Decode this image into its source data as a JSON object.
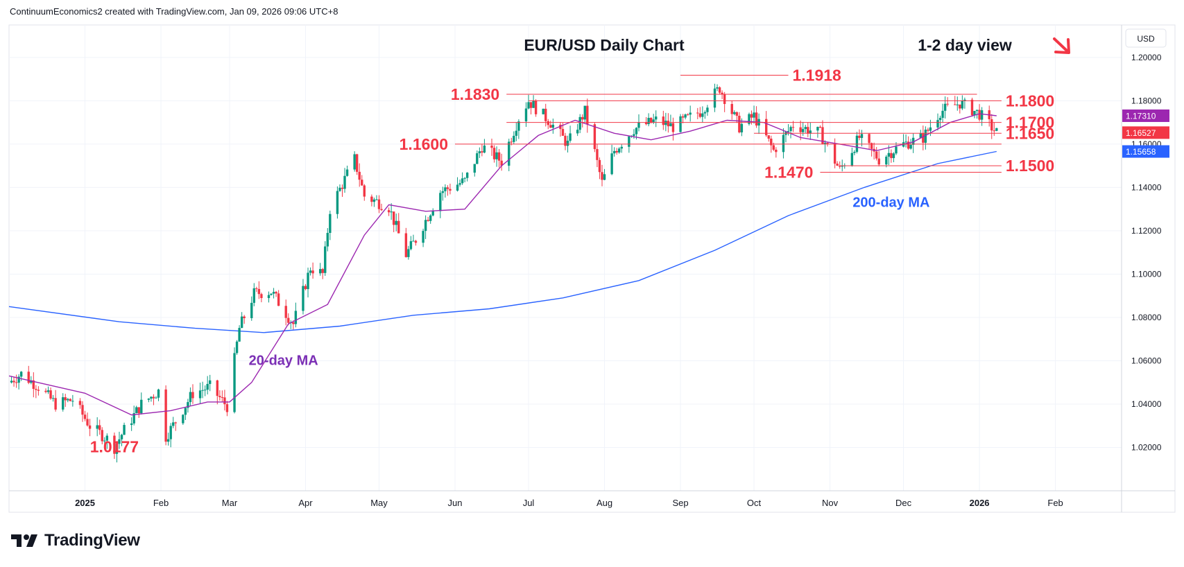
{
  "attribution": "ContinuumEconomics2 created with TradingView.com, Jan 09, 2026 09:06 UTC+8",
  "brand": {
    "name": "TradingView",
    "logo_icon": "tradingview-logo-icon"
  },
  "colors": {
    "up": "#089981",
    "down": "#f23645",
    "ma20": "#9c27b0",
    "ma200": "#2962ff",
    "level": "#f23645",
    "label": "#f23645"
  },
  "chart_data": {
    "type": "candlestick",
    "title": "EUR/USD Daily Chart",
    "view": "1-2 day view",
    "view_direction_icon": "down-right-arrow-icon",
    "currency": "USD",
    "ylim": [
      1.0,
      1.215
    ],
    "xlim": [
      "2024-12-01",
      "2026-02-28"
    ],
    "y_ticks": [
      "1.20000",
      "1.18000",
      "1.16000",
      "1.14000",
      "1.12000",
      "1.10000",
      "1.08000",
      "1.06000",
      "1.04000",
      "1.02000"
    ],
    "x_ticks": [
      {
        "label": "2025",
        "date": "2025-01-01",
        "bold": true
      },
      {
        "label": "Feb",
        "date": "2025-02-01",
        "bold": false
      },
      {
        "label": "Mar",
        "date": "2025-03-01",
        "bold": false
      },
      {
        "label": "Apr",
        "date": "2025-04-01",
        "bold": false
      },
      {
        "label": "May",
        "date": "2025-05-01",
        "bold": false
      },
      {
        "label": "Jun",
        "date": "2025-06-01",
        "bold": false
      },
      {
        "label": "Jul",
        "date": "2025-07-01",
        "bold": false
      },
      {
        "label": "Aug",
        "date": "2025-08-01",
        "bold": false
      },
      {
        "label": "Sep",
        "date": "2025-09-01",
        "bold": false
      },
      {
        "label": "Oct",
        "date": "2025-10-01",
        "bold": false
      },
      {
        "label": "Nov",
        "date": "2025-11-01",
        "bold": false
      },
      {
        "label": "Dec",
        "date": "2025-12-01",
        "bold": false
      },
      {
        "label": "2026",
        "date": "2026-01-01",
        "bold": true
      },
      {
        "label": "Feb",
        "date": "2026-02-01",
        "bold": false
      }
    ],
    "price_path": [
      [
        "2024-12-01",
        1.05
      ],
      [
        "2024-12-06",
        1.054
      ],
      [
        "2024-12-13",
        1.048
      ],
      [
        "2024-12-20",
        1.04
      ],
      [
        "2024-12-27",
        1.042
      ],
      [
        "2025-01-03",
        1.03
      ],
      [
        "2025-01-10",
        1.024
      ],
      [
        "2025-01-13",
        1.02
      ],
      [
        "2025-01-17",
        1.028
      ],
      [
        "2025-01-24",
        1.04
      ],
      [
        "2025-01-31",
        1.046
      ],
      [
        "2025-02-03",
        1.025
      ],
      [
        "2025-02-07",
        1.032
      ],
      [
        "2025-02-14",
        1.045
      ],
      [
        "2025-02-21",
        1.048
      ],
      [
        "2025-02-28",
        1.039
      ],
      [
        "2025-03-05",
        1.075
      ],
      [
        "2025-03-11",
        1.091
      ],
      [
        "2025-03-18",
        1.092
      ],
      [
        "2025-03-27",
        1.077
      ],
      [
        "2025-04-03",
        1.103
      ],
      [
        "2025-04-08",
        1.1
      ],
      [
        "2025-04-11",
        1.13
      ],
      [
        "2025-04-21",
        1.153
      ],
      [
        "2025-04-25",
        1.136
      ],
      [
        "2025-05-05",
        1.131
      ],
      [
        "2025-05-12",
        1.109
      ],
      [
        "2025-05-16",
        1.116
      ],
      [
        "2025-05-26",
        1.138
      ],
      [
        "2025-06-05",
        1.143
      ],
      [
        "2025-06-12",
        1.159
      ],
      [
        "2025-06-20",
        1.152
      ],
      [
        "2025-06-27",
        1.172
      ],
      [
        "2025-07-01",
        1.18
      ],
      [
        "2025-07-10",
        1.17
      ],
      [
        "2025-07-17",
        1.16
      ],
      [
        "2025-07-24",
        1.175
      ],
      [
        "2025-07-31",
        1.142
      ],
      [
        "2025-08-05",
        1.157
      ],
      [
        "2025-08-13",
        1.167
      ],
      [
        "2025-08-22",
        1.171
      ],
      [
        "2025-08-29",
        1.168
      ],
      [
        "2025-09-09",
        1.175
      ],
      [
        "2025-09-17",
        1.186
      ],
      [
        "2025-09-25",
        1.168
      ],
      [
        "2025-10-01",
        1.173
      ],
      [
        "2025-10-09",
        1.157
      ],
      [
        "2025-10-17",
        1.169
      ],
      [
        "2025-10-28",
        1.165
      ],
      [
        "2025-11-05",
        1.148
      ],
      [
        "2025-11-13",
        1.163
      ],
      [
        "2025-11-21",
        1.153
      ],
      [
        "2025-12-01",
        1.16
      ],
      [
        "2025-12-09",
        1.163
      ],
      [
        "2025-12-16",
        1.175
      ],
      [
        "2025-12-24",
        1.179
      ],
      [
        "2026-01-01",
        1.174
      ],
      [
        "2026-01-08",
        1.1653
      ]
    ],
    "ma20": [
      [
        "2024-12-01",
        1.053
      ],
      [
        "2025-01-01",
        1.045
      ],
      [
        "2025-01-20",
        1.035
      ],
      [
        "2025-02-05",
        1.037
      ],
      [
        "2025-02-20",
        1.041
      ],
      [
        "2025-03-01",
        1.041
      ],
      [
        "2025-03-10",
        1.05
      ],
      [
        "2025-03-25",
        1.077
      ],
      [
        "2025-04-10",
        1.086
      ],
      [
        "2025-04-25",
        1.118
      ],
      [
        "2025-05-05",
        1.132
      ],
      [
        "2025-05-20",
        1.129
      ],
      [
        "2025-06-05",
        1.13
      ],
      [
        "2025-06-20",
        1.15
      ],
      [
        "2025-07-05",
        1.164
      ],
      [
        "2025-07-20",
        1.171
      ],
      [
        "2025-08-05",
        1.165
      ],
      [
        "2025-08-20",
        1.162
      ],
      [
        "2025-09-05",
        1.166
      ],
      [
        "2025-09-20",
        1.171
      ],
      [
        "2025-10-05",
        1.17
      ],
      [
        "2025-10-20",
        1.163
      ],
      [
        "2025-11-05",
        1.16
      ],
      [
        "2025-11-20",
        1.157
      ],
      [
        "2025-12-05",
        1.161
      ],
      [
        "2025-12-20",
        1.17
      ],
      [
        "2026-01-01",
        1.174
      ],
      [
        "2026-01-08",
        1.1731
      ]
    ],
    "ma200": [
      [
        "2024-12-01",
        1.085
      ],
      [
        "2025-01-15",
        1.078
      ],
      [
        "2025-02-15",
        1.075
      ],
      [
        "2025-03-15",
        1.073
      ],
      [
        "2025-04-15",
        1.076
      ],
      [
        "2025-05-15",
        1.081
      ],
      [
        "2025-06-15",
        1.084
      ],
      [
        "2025-07-15",
        1.089
      ],
      [
        "2025-08-15",
        1.097
      ],
      [
        "2025-09-15",
        1.111
      ],
      [
        "2025-10-15",
        1.127
      ],
      [
        "2025-11-15",
        1.14
      ],
      [
        "2025-12-15",
        1.151
      ],
      [
        "2026-01-08",
        1.1566
      ]
    ],
    "levels": [
      {
        "label": "1.1918",
        "value": 1.1918,
        "from": "2025-09-01",
        "to": "2025-10-15",
        "label_side": "right"
      },
      {
        "label": "1.1830",
        "value": 1.183,
        "from": "2025-06-22",
        "to": "2025-12-31",
        "label_side": "left"
      },
      {
        "label": "1.1800",
        "value": 1.18,
        "from": "2025-07-01",
        "to": "2026-01-10",
        "label_side": "right"
      },
      {
        "label": "1.1700",
        "value": 1.17,
        "from": "2025-06-22",
        "to": "2026-01-10",
        "label_side": "right"
      },
      {
        "label": "1.1650",
        "value": 1.165,
        "from": "2025-10-01",
        "to": "2026-01-10",
        "label_side": "right"
      },
      {
        "label": "1.1600",
        "value": 1.16,
        "from": "2025-06-01",
        "to": "2026-01-10",
        "label_side": "left"
      },
      {
        "label": "1.1500",
        "value": 1.15,
        "from": "2025-11-05",
        "to": "2026-01-10",
        "label_side": "right"
      },
      {
        "label": "1.1470",
        "value": 1.147,
        "from": "2025-10-28",
        "to": "2026-01-10",
        "label_side": "left"
      }
    ],
    "annotations": [
      {
        "label": "1.0177",
        "value": 1.0177,
        "date": "2025-01-13",
        "color": "#f23645"
      },
      {
        "label": "20-day MA",
        "value": 1.058,
        "date": "2025-03-23",
        "color": "#7b2fb5"
      },
      {
        "label": "200-day MA",
        "value": 1.131,
        "date": "2025-11-26",
        "color": "#2962ff"
      }
    ],
    "price_tags": [
      {
        "label": "1.17310",
        "value": 1.1731,
        "color": "#9c27b0"
      },
      {
        "label": "1.16527",
        "value": 1.1653,
        "color": "#f23645"
      },
      {
        "label": "1.15658",
        "value": 1.1566,
        "color": "#2962ff"
      }
    ]
  }
}
